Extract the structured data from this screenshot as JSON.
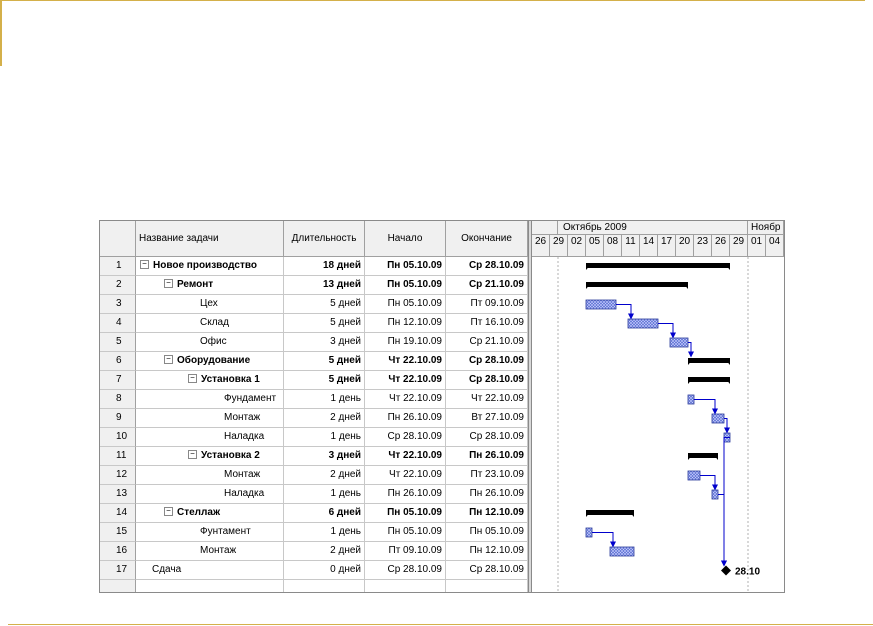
{
  "columns": {
    "name": "Название задачи",
    "duration": "Длительность",
    "start": "Начало",
    "finish": "Окончание"
  },
  "tasks": [
    {
      "id": "1",
      "name": "Новое производство",
      "duration": "18 дней",
      "start": "Пн 05.10.09",
      "finish": "Ср 28.10.09",
      "bold": true,
      "toggle": "−"
    },
    {
      "id": "2",
      "name": "Ремонт",
      "duration": "13 дней",
      "start": "Пн 05.10.09",
      "finish": "Ср 21.10.09",
      "bold": true,
      "toggle": "−"
    },
    {
      "id": "3",
      "name": "Цех",
      "duration": "5 дней",
      "start": "Пн 05.10.09",
      "finish": "Пт 09.10.09",
      "bold": false
    },
    {
      "id": "4",
      "name": "Склад",
      "duration": "5 дней",
      "start": "Пн 12.10.09",
      "finish": "Пт 16.10.09",
      "bold": false
    },
    {
      "id": "5",
      "name": "Офис",
      "duration": "3 дней",
      "start": "Пн 19.10.09",
      "finish": "Ср 21.10.09",
      "bold": false
    },
    {
      "id": "6",
      "name": "Оборудование",
      "duration": "5 дней",
      "start": "Чт 22.10.09",
      "finish": "Ср 28.10.09",
      "bold": true,
      "toggle": "−"
    },
    {
      "id": "7",
      "name": "Установка 1",
      "duration": "5 дней",
      "start": "Чт 22.10.09",
      "finish": "Ср 28.10.09",
      "bold": true,
      "toggle": "−"
    },
    {
      "id": "8",
      "name": "Фундамент",
      "duration": "1 день",
      "start": "Чт 22.10.09",
      "finish": "Чт 22.10.09",
      "bold": false
    },
    {
      "id": "9",
      "name": "Монтаж",
      "duration": "2 дней",
      "start": "Пн 26.10.09",
      "finish": "Вт 27.10.09",
      "bold": false
    },
    {
      "id": "10",
      "name": "Наладка",
      "duration": "1 день",
      "start": "Ср 28.10.09",
      "finish": "Ср 28.10.09",
      "bold": false
    },
    {
      "id": "11",
      "name": "Установка 2",
      "duration": "3 дней",
      "start": "Чт 22.10.09",
      "finish": "Пн 26.10.09",
      "bold": true,
      "toggle": "−"
    },
    {
      "id": "12",
      "name": "Монтаж",
      "duration": "2 дней",
      "start": "Чт 22.10.09",
      "finish": "Пт 23.10.09",
      "bold": false
    },
    {
      "id": "13",
      "name": "Наладка",
      "duration": "1 день",
      "start": "Пн 26.10.09",
      "finish": "Пн 26.10.09",
      "bold": false
    },
    {
      "id": "14",
      "name": "Стеллаж",
      "duration": "6 дней",
      "start": "Пн 05.10.09",
      "finish": "Пн 12.10.09",
      "bold": true,
      "toggle": "−"
    },
    {
      "id": "15",
      "name": "Фунтамент",
      "duration": "1 день",
      "start": "Пн 05.10.09",
      "finish": "Пн 05.10.09",
      "bold": false
    },
    {
      "id": "16",
      "name": "Монтаж",
      "duration": "2 дней",
      "start": "Пт 09.10.09",
      "finish": "Пн 12.10.09",
      "bold": false
    },
    {
      "id": "17",
      "name": "Сдача",
      "duration": "0 дней",
      "start": "Ср 28.10.09",
      "finish": "Ср 28.10.09",
      "bold": false
    }
  ],
  "timescale": {
    "months": [
      "Октябрь 2009",
      "Ноябр"
    ],
    "days": [
      "26",
      "29",
      "02",
      "05",
      "08",
      "11",
      "14",
      "17",
      "20",
      "23",
      "26",
      "29",
      "01",
      "04"
    ]
  },
  "milestone_label": "28.10",
  "colors": {
    "summary_bar": "#000000",
    "task_fill": "#5b6fd1",
    "link": "#0000cc",
    "header_bg": "#f0f0f0",
    "accent_line": "#d4b04a"
  }
}
